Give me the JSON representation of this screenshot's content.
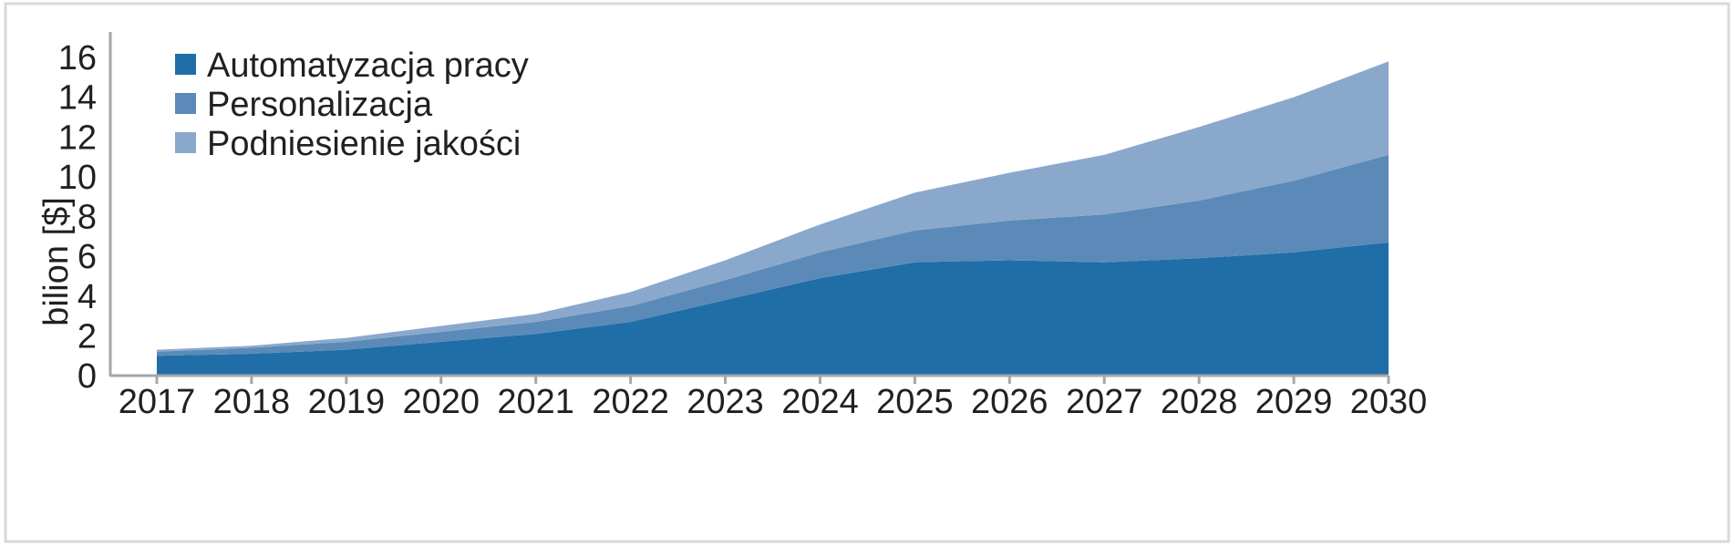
{
  "chart_data": {
    "type": "area",
    "stacked": true,
    "title": "",
    "xlabel": "",
    "ylabel": "bilion [$]",
    "x": [
      2017,
      2018,
      2019,
      2020,
      2021,
      2022,
      2023,
      2024,
      2025,
      2026,
      2027,
      2028,
      2029,
      2030
    ],
    "x_tick_labels": [
      "2017",
      "2018",
      "2019",
      "2020",
      "2021",
      "2022",
      "2023",
      "2024",
      "2025",
      "2026",
      "2027",
      "2028",
      "2029",
      "2030"
    ],
    "ylim": [
      0,
      16
    ],
    "y_ticks": [
      0,
      2,
      4,
      6,
      8,
      10,
      12,
      14,
      16
    ],
    "y_tick_labels": [
      "0",
      "2",
      "4",
      "6",
      "8",
      "10",
      "12",
      "14",
      "16"
    ],
    "legend_position": "top-left",
    "grid": false,
    "series": [
      {
        "name": "Automatyzacja pracy",
        "color": "#1f6ea8",
        "values": [
          1.0,
          1.1,
          1.3,
          1.7,
          2.1,
          2.7,
          3.8,
          4.9,
          5.7,
          5.8,
          5.7,
          5.9,
          6.2,
          6.7
        ]
      },
      {
        "name": "Personalizacja",
        "color": "#5b8ab8",
        "values": [
          0.2,
          0.3,
          0.4,
          0.5,
          0.6,
          0.8,
          1.0,
          1.3,
          1.6,
          2.0,
          2.4,
          2.9,
          3.6,
          4.4
        ]
      },
      {
        "name": "Podniesienie jakości",
        "color": "#8aa8cc",
        "values": [
          0.1,
          0.1,
          0.2,
          0.3,
          0.4,
          0.7,
          1.0,
          1.4,
          1.9,
          2.4,
          3.0,
          3.7,
          4.2,
          4.7
        ]
      }
    ],
    "axis_color": "#a6a6a6",
    "frame_color": "#d9d9d9"
  }
}
